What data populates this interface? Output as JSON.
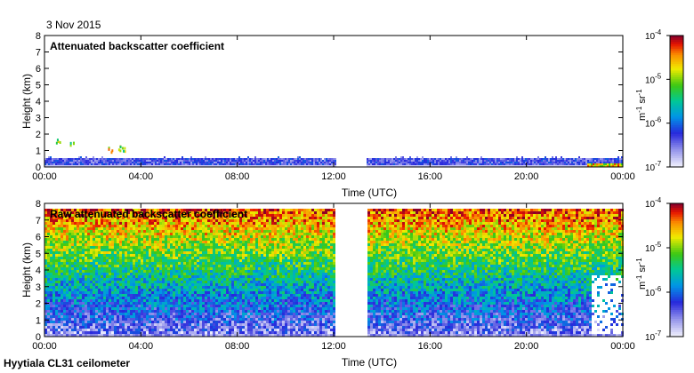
{
  "date_label": "3 Nov 2015",
  "instrument_label": "Hyytiala CL31 ceilometer",
  "chart_data": [
    {
      "type": "heatmap",
      "title": "Attenuated backscatter coefficient",
      "xlabel": "Time (UTC)",
      "ylabel": "Height (km)",
      "x_ticks": [
        "00:00",
        "04:00",
        "08:00",
        "12:00",
        "16:00",
        "20:00",
        "00:00"
      ],
      "x_tick_hours": [
        0,
        4,
        8,
        12,
        16,
        20,
        24
      ],
      "xlim_hours": [
        0,
        24
      ],
      "y_ticks": [
        0,
        1,
        2,
        3,
        4,
        5,
        6,
        7,
        8
      ],
      "ylim": [
        0,
        8
      ],
      "data_gap_hours": [
        12.05,
        13.3
      ],
      "signal_layer_top_km": 0.6,
      "colorbar": {
        "scale": "log",
        "range": [
          1e-07,
          0.0001
        ],
        "ticks": [
          "10",
          "10",
          "10",
          "10"
        ],
        "tick_exponents": [
          "-7",
          "-6",
          "-5",
          "-4"
        ],
        "unit_parts": [
          "m",
          "-1",
          " sr",
          "-1"
        ]
      }
    },
    {
      "type": "heatmap",
      "title": "Raw attenuated backscatter coefficient",
      "xlabel": "Time (UTC)",
      "ylabel": "Height (km)",
      "x_ticks": [
        "00:00",
        "04:00",
        "08:00",
        "12:00",
        "16:00",
        "20:00",
        "00:00"
      ],
      "x_tick_hours": [
        0,
        4,
        8,
        12,
        16,
        20,
        24
      ],
      "xlim_hours": [
        0,
        24
      ],
      "y_ticks": [
        0,
        1,
        2,
        3,
        4,
        5,
        6,
        7,
        8
      ],
      "ylim": [
        0,
        8
      ],
      "data_gap_hours": [
        12.05,
        13.3
      ],
      "data_top_km": 7.7,
      "colorbar": {
        "scale": "log",
        "range": [
          1e-07,
          0.0001
        ],
        "ticks": [
          "10",
          "10",
          "10",
          "10"
        ],
        "tick_exponents": [
          "-7",
          "-6",
          "-5",
          "-4"
        ],
        "unit_parts": [
          "m",
          "-1",
          " sr",
          "-1"
        ]
      }
    }
  ]
}
